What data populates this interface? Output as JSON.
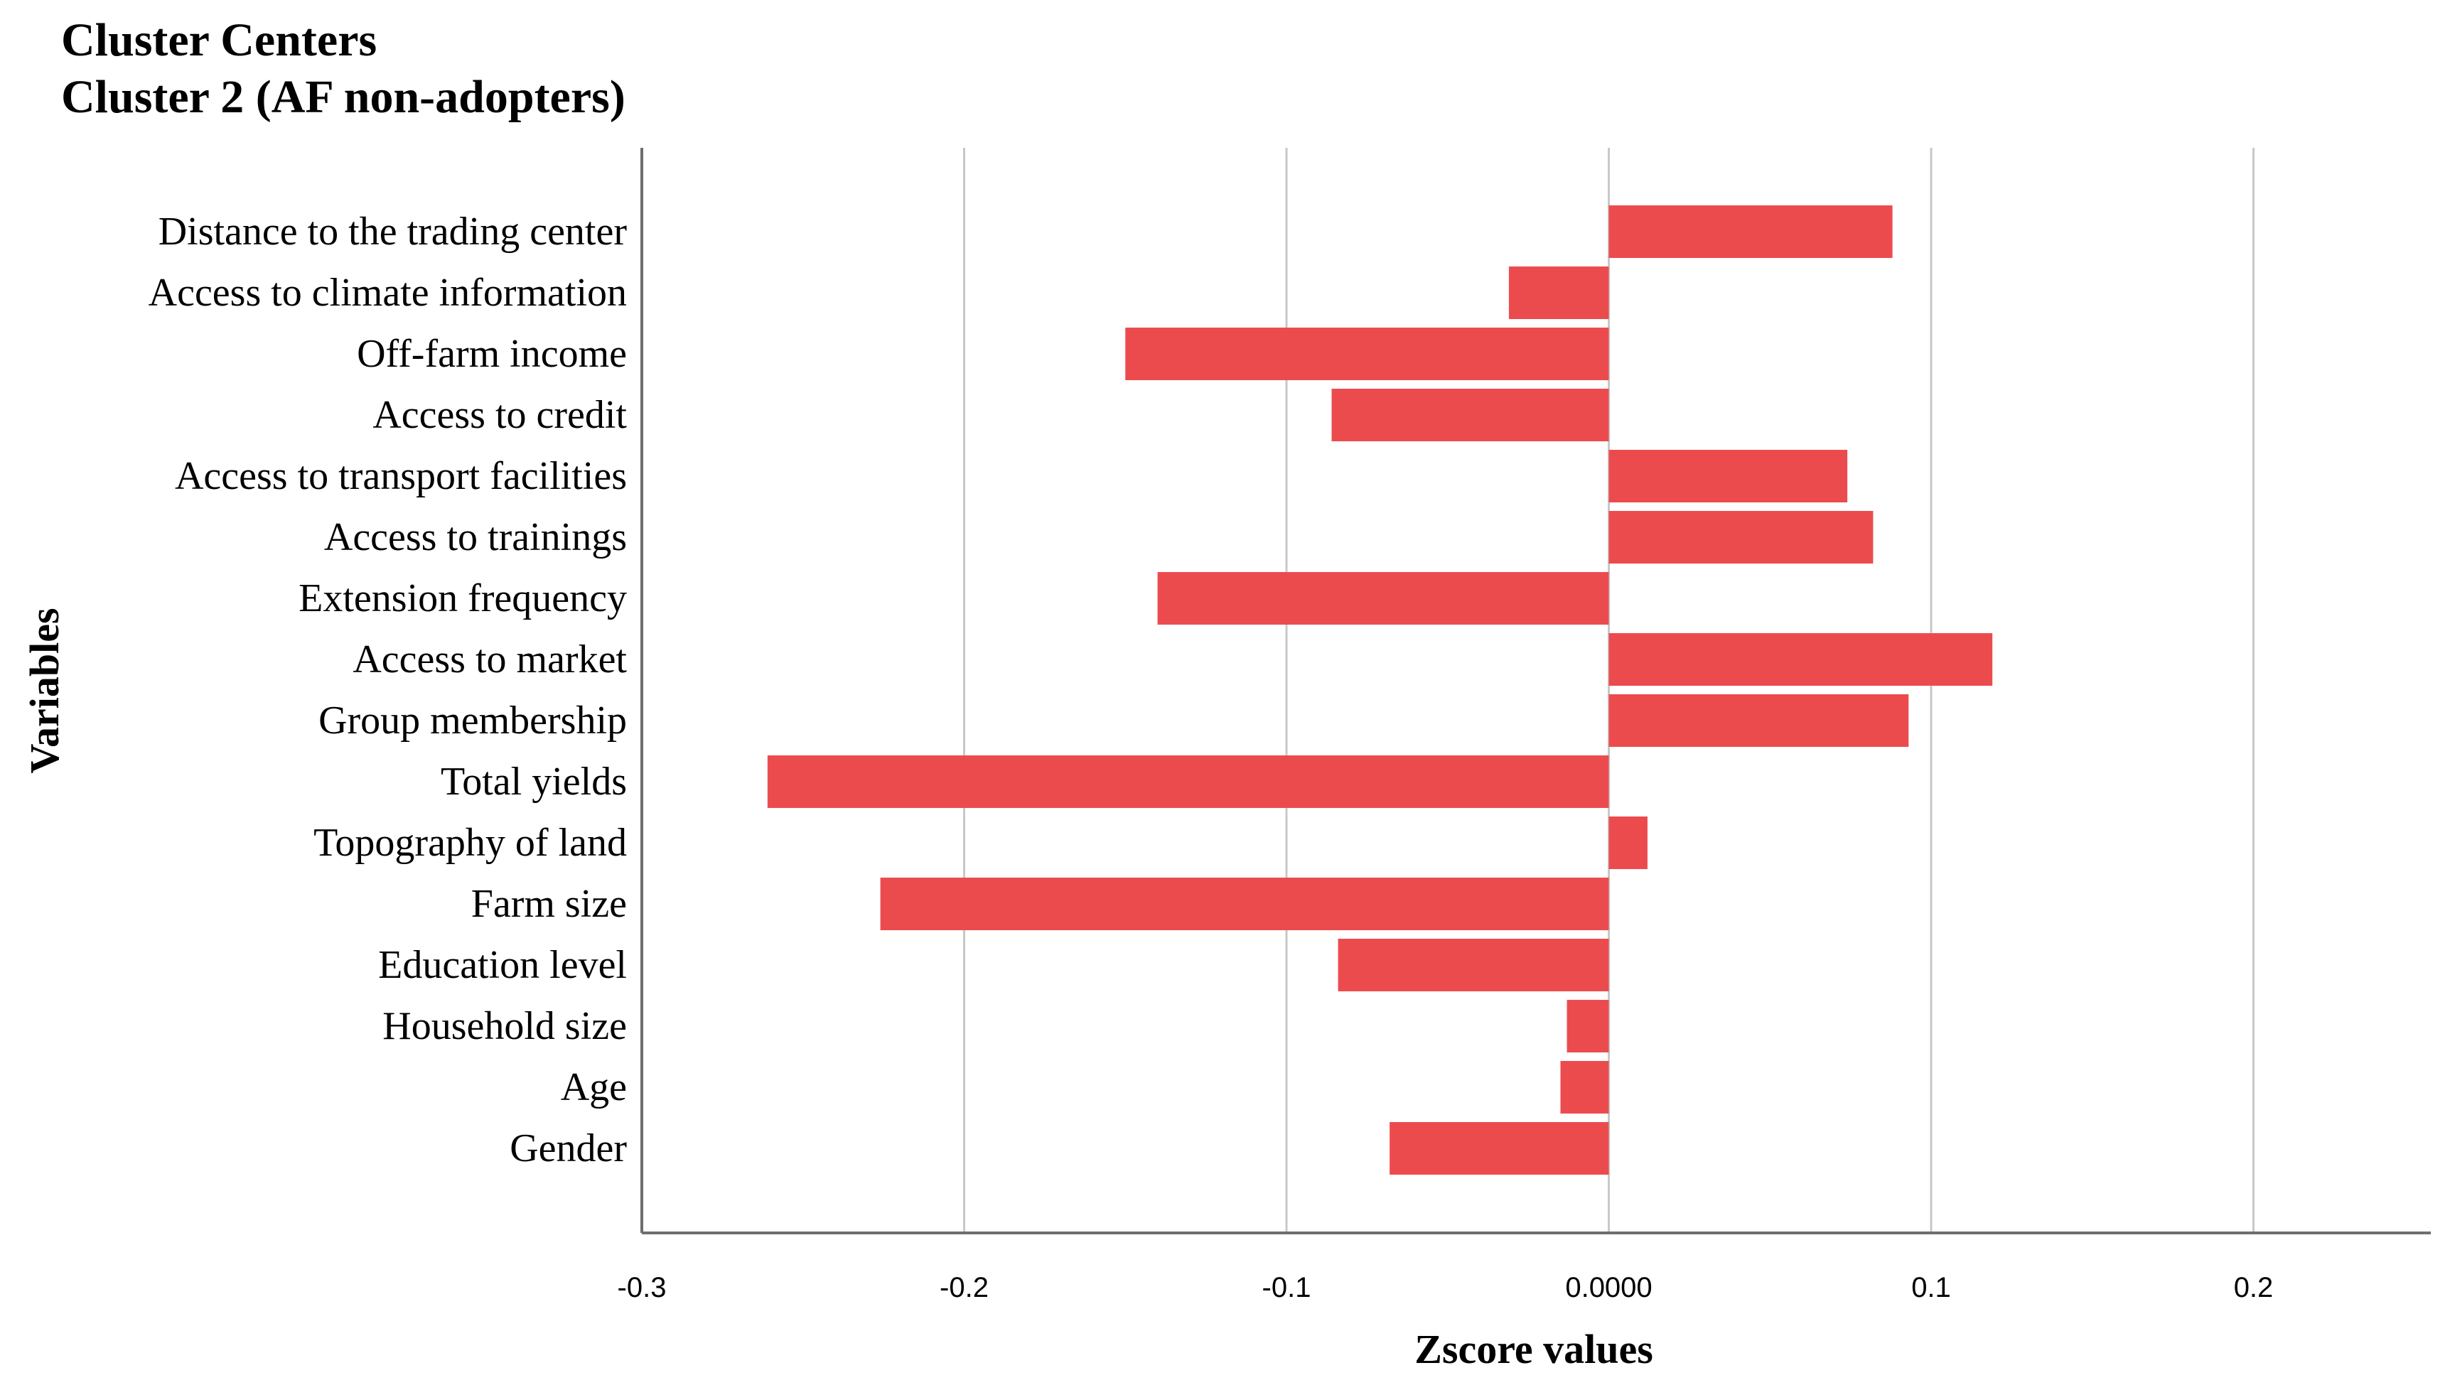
{
  "chart_data": {
    "type": "bar",
    "orientation": "horizontal",
    "title": "Cluster Centers",
    "subtitle": "Cluster 2 (AF non-adopters)",
    "xlabel": "Zscore values",
    "ylabel": "Variables",
    "xlim": [
      -0.3,
      0.255
    ],
    "xticks": [
      -0.3,
      -0.2,
      -0.1,
      0.0,
      0.1,
      0.2
    ],
    "xtick_labels": [
      "-0.3",
      "-0.2",
      "-0.1",
      "0.0000",
      "0.1",
      "0.2"
    ],
    "grid": "vertical",
    "bar_color": "#EC4B4E",
    "categories": [
      "Distance to the trading center",
      "Access to climate information",
      "Off-farm income",
      "Access to credit",
      "Access to transport facilities",
      "Access to trainings",
      "Extension frequency",
      "Access to  market",
      "Group membership",
      "Total yields",
      "Topography of land",
      "Farm size",
      "Education level",
      "Household size",
      "Age",
      "Gender"
    ],
    "values": [
      0.088,
      -0.031,
      -0.15,
      -0.086,
      0.074,
      0.082,
      -0.14,
      0.119,
      0.093,
      -0.261,
      0.012,
      -0.226,
      -0.084,
      -0.013,
      -0.015,
      -0.068
    ]
  }
}
